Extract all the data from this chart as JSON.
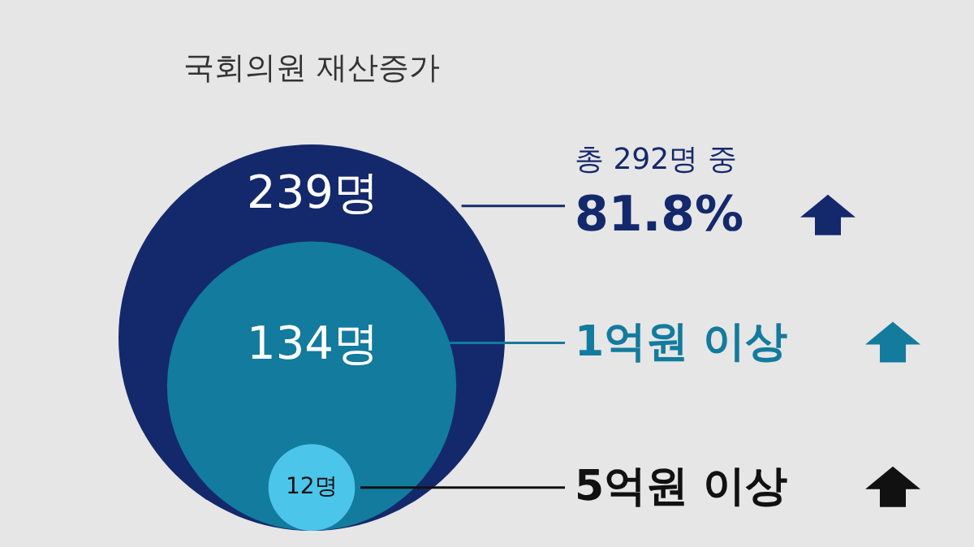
{
  "chart_data": {
    "type": "other",
    "title": "국회의원 재산증가",
    "categories": [
      "81.8%",
      "1억원 이상",
      "5억원 이상"
    ],
    "values": [
      239,
      134,
      12
    ],
    "value_labels": [
      "239명",
      "134명",
      "12명"
    ],
    "colors": [
      "#14296c",
      "#137b9d",
      "#4cc5ea"
    ],
    "annotations": [
      "총 292명 중"
    ]
  }
}
